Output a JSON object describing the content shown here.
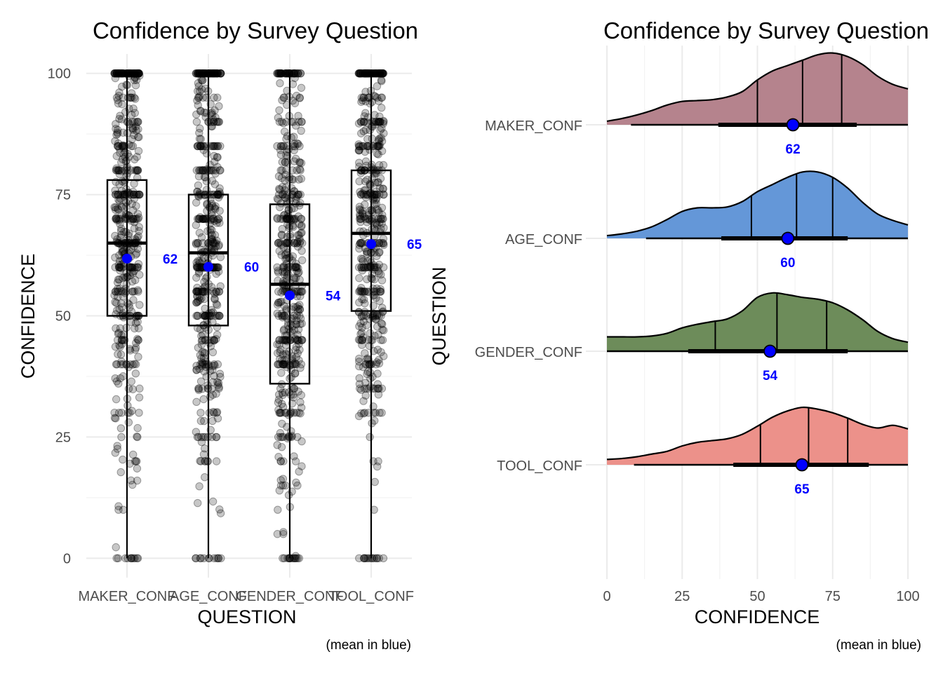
{
  "chart_data": [
    {
      "type": "boxplot",
      "title": "Confidence by Survey Question",
      "xlabel": "QUESTION",
      "ylabel": "CONFIDENCE",
      "caption": "(mean in blue)",
      "categories": [
        "MAKER_CONF",
        "AGE_CONF",
        "GENDER_CONF",
        "TOOL_CONF"
      ],
      "ylim": [
        -4,
        104
      ],
      "yticks": [
        "0",
        "25",
        "50",
        "75",
        "100"
      ],
      "grid": true,
      "boxes": [
        {
          "name": "MAKER_CONF",
          "q1": 50,
          "median": 65,
          "q3": 78,
          "mean": 61.8,
          "mean_label": "62"
        },
        {
          "name": "AGE_CONF",
          "q1": 48,
          "median": 63,
          "q3": 75,
          "mean": 60.1,
          "mean_label": "60"
        },
        {
          "name": "GENDER_CONF",
          "q1": 36,
          "median": 56.5,
          "q3": 73,
          "mean": 54.2,
          "mean_label": "54"
        },
        {
          "name": "TOOL_CONF",
          "q1": 51,
          "median": 67,
          "q3": 80,
          "mean": 64.8,
          "mean_label": "65"
        }
      ],
      "points": "jittered raw responses (0-100) shown as semi-transparent black dots"
    },
    {
      "type": "ridgeline",
      "title": "Confidence by Survey Question",
      "xlabel": "CONFIDENCE",
      "ylabel": "QUESTION",
      "caption": "(mean in blue)",
      "xlim": [
        0,
        100
      ],
      "xticks": [
        "0",
        "25",
        "50",
        "75",
        "100"
      ],
      "grid": true,
      "ridges": [
        {
          "name": "MAKER_CONF",
          "color": "#b5838d",
          "quantiles": [
            50,
            65,
            78
          ],
          "interval_outer": [
            8,
            100
          ],
          "interval_inner": [
            37,
            83
          ],
          "mean": 61.8,
          "mean_label": "62",
          "density": [
            [
              0,
              0.04
            ],
            [
              5,
              0.07
            ],
            [
              10,
              0.11
            ],
            [
              15,
              0.16
            ],
            [
              20,
              0.22
            ],
            [
              25,
              0.26
            ],
            [
              30,
              0.27
            ],
            [
              35,
              0.28
            ],
            [
              40,
              0.31
            ],
            [
              45,
              0.37
            ],
            [
              50,
              0.5
            ],
            [
              55,
              0.6
            ],
            [
              60,
              0.66
            ],
            [
              65,
              0.72
            ],
            [
              70,
              0.78
            ],
            [
              75,
              0.8
            ],
            [
              80,
              0.76
            ],
            [
              85,
              0.67
            ],
            [
              90,
              0.54
            ],
            [
              95,
              0.45
            ],
            [
              100,
              0.4
            ]
          ]
        },
        {
          "name": "AGE_CONF",
          "color": "#6497d8",
          "quantiles": [
            48,
            63,
            75
          ],
          "interval_outer": [
            13,
            100
          ],
          "interval_inner": [
            38,
            80
          ],
          "mean": 60.1,
          "mean_label": "60",
          "density": [
            [
              0,
              0.03
            ],
            [
              5,
              0.05
            ],
            [
              10,
              0.08
            ],
            [
              15,
              0.13
            ],
            [
              20,
              0.21
            ],
            [
              25,
              0.3
            ],
            [
              30,
              0.34
            ],
            [
              35,
              0.34
            ],
            [
              40,
              0.35
            ],
            [
              45,
              0.41
            ],
            [
              50,
              0.52
            ],
            [
              55,
              0.6
            ],
            [
              60,
              0.68
            ],
            [
              65,
              0.74
            ],
            [
              70,
              0.74
            ],
            [
              75,
              0.68
            ],
            [
              80,
              0.56
            ],
            [
              85,
              0.4
            ],
            [
              90,
              0.27
            ],
            [
              95,
              0.2
            ],
            [
              100,
              0.15
            ]
          ]
        },
        {
          "name": "GENDER_CONF",
          "color": "#6d8c5a",
          "quantiles": [
            36,
            56.5,
            73
          ],
          "interval_outer": [
            0,
            100
          ],
          "interval_inner": [
            27,
            80
          ],
          "mean": 54.2,
          "mean_label": "54",
          "density": [
            [
              0,
              0.16
            ],
            [
              5,
              0.16
            ],
            [
              10,
              0.16
            ],
            [
              15,
              0.17
            ],
            [
              20,
              0.2
            ],
            [
              25,
              0.26
            ],
            [
              30,
              0.3
            ],
            [
              35,
              0.33
            ],
            [
              40,
              0.36
            ],
            [
              45,
              0.45
            ],
            [
              50,
              0.6
            ],
            [
              55,
              0.65
            ],
            [
              60,
              0.63
            ],
            [
              65,
              0.6
            ],
            [
              70,
              0.58
            ],
            [
              75,
              0.54
            ],
            [
              80,
              0.46
            ],
            [
              85,
              0.35
            ],
            [
              90,
              0.22
            ],
            [
              95,
              0.14
            ],
            [
              100,
              0.1
            ]
          ]
        },
        {
          "name": "TOOL_CONF",
          "color": "#ec918a",
          "quantiles": [
            51,
            67,
            80
          ],
          "interval_outer": [
            9,
            100
          ],
          "interval_inner": [
            42,
            87
          ],
          "mean": 64.8,
          "mean_label": "65",
          "density": [
            [
              0,
              0.06
            ],
            [
              5,
              0.07
            ],
            [
              10,
              0.09
            ],
            [
              15,
              0.12
            ],
            [
              20,
              0.15
            ],
            [
              25,
              0.21
            ],
            [
              30,
              0.25
            ],
            [
              35,
              0.27
            ],
            [
              40,
              0.29
            ],
            [
              45,
              0.34
            ],
            [
              50,
              0.43
            ],
            [
              55,
              0.53
            ],
            [
              60,
              0.6
            ],
            [
              65,
              0.64
            ],
            [
              70,
              0.62
            ],
            [
              75,
              0.58
            ],
            [
              80,
              0.52
            ],
            [
              85,
              0.45
            ],
            [
              90,
              0.41
            ],
            [
              95,
              0.44
            ],
            [
              100,
              0.4
            ]
          ]
        }
      ]
    }
  ]
}
